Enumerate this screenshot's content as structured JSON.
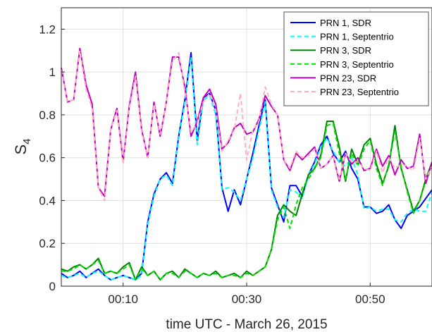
{
  "chart_data": {
    "type": "line",
    "xlabel": "time UTC - March 26, 2015",
    "ylabel": "S",
    "ylabel_sub": "4",
    "xlim": [
      0,
      60
    ],
    "ylim": [
      0,
      1.3
    ],
    "xticks": [
      10,
      30,
      50
    ],
    "xtick_labels": [
      "00:10",
      "00:30",
      "00:50"
    ],
    "yticks": [
      0,
      0.2,
      0.4,
      0.6,
      0.8,
      1,
      1.2
    ],
    "ytick_labels": [
      "0",
      "0.2",
      "0.4",
      "0.6",
      "0.8",
      "1",
      "1.2"
    ],
    "grid": true,
    "legend_position": "top-right",
    "x": [
      0,
      1,
      2,
      3,
      4,
      5,
      6,
      7,
      8,
      9,
      10,
      11,
      12,
      13,
      14,
      15,
      16,
      17,
      18,
      19,
      20,
      21,
      22,
      23,
      24,
      25,
      26,
      27,
      28,
      29,
      30,
      31,
      32,
      33,
      34,
      35,
      36,
      37,
      38,
      39,
      40,
      41,
      42,
      43,
      44,
      45,
      46,
      47,
      48,
      49,
      50,
      51,
      52,
      53,
      54,
      55,
      56,
      57,
      58,
      59,
      60
    ],
    "series": [
      {
        "name": "PRN 1, SDR",
        "color": "#0000ff",
        "dash": "solid",
        "values": [
          0.06,
          0.04,
          0.05,
          0.07,
          0.04,
          0.06,
          0.08,
          0.05,
          0.03,
          0.04,
          0.05,
          0.04,
          0.03,
          0.06,
          0.3,
          0.43,
          0.5,
          0.53,
          0.48,
          0.7,
          0.87,
          1.09,
          0.68,
          0.88,
          0.9,
          0.82,
          0.46,
          0.35,
          0.45,
          0.38,
          0.5,
          0.62,
          0.75,
          0.87,
          0.46,
          0.38,
          0.3,
          0.47,
          0.47,
          0.42,
          0.52,
          0.58,
          0.66,
          0.7,
          0.62,
          0.58,
          0.63,
          0.55,
          0.5,
          0.37,
          0.37,
          0.34,
          0.35,
          0.38,
          0.31,
          0.27,
          0.33,
          0.35,
          0.37,
          0.41,
          0.45
        ]
      },
      {
        "name": "PRN 1, Septentrio",
        "color": "#00ffff",
        "dash": "dashed",
        "values": [
          0.05,
          0.04,
          0.05,
          0.06,
          0.04,
          0.06,
          0.07,
          0.05,
          0.03,
          0.04,
          0.05,
          0.04,
          0.03,
          0.05,
          0.29,
          0.42,
          0.5,
          0.52,
          0.47,
          0.69,
          0.86,
          1.07,
          0.66,
          0.87,
          0.89,
          0.8,
          0.45,
          0.46,
          0.44,
          0.4,
          0.5,
          0.6,
          0.73,
          0.86,
          0.45,
          0.37,
          0.32,
          0.45,
          0.44,
          0.41,
          0.52,
          0.57,
          0.65,
          0.69,
          0.63,
          0.58,
          0.56,
          0.6,
          0.52,
          0.36,
          0.37,
          0.35,
          0.36,
          0.36,
          0.31,
          0.3,
          0.34,
          0.36,
          0.35,
          0.35,
          0.44
        ]
      },
      {
        "name": "PRN 3, SDR",
        "color": "#008000",
        "dash": "solid",
        "values": [
          0.08,
          0.07,
          0.09,
          0.1,
          0.08,
          0.1,
          0.13,
          0.06,
          0.07,
          0.06,
          0.09,
          0.11,
          0.03,
          0.09,
          0.05,
          0.07,
          0.03,
          0.06,
          0.07,
          0.04,
          0.08,
          0.06,
          0.04,
          0.06,
          0.05,
          0.07,
          0.04,
          0.05,
          0.06,
          0.04,
          0.07,
          0.05,
          0.07,
          0.09,
          0.17,
          0.33,
          0.38,
          0.35,
          0.33,
          0.43,
          0.52,
          0.55,
          0.61,
          0.77,
          0.77,
          0.65,
          0.49,
          0.64,
          0.57,
          0.66,
          0.69,
          0.57,
          0.48,
          0.56,
          0.75,
          0.55,
          0.45,
          0.35,
          0.4,
          0.5,
          0.58
        ]
      },
      {
        "name": "PRN 3, Septentrio",
        "color": "#00dd00",
        "dash": "dashed",
        "values": [
          0.07,
          0.07,
          0.08,
          0.1,
          0.08,
          0.1,
          0.12,
          0.06,
          0.07,
          0.06,
          0.08,
          0.1,
          0.03,
          0.08,
          0.05,
          0.07,
          0.03,
          0.06,
          0.06,
          0.04,
          0.07,
          0.06,
          0.04,
          0.06,
          0.05,
          0.06,
          0.04,
          0.05,
          0.05,
          0.04,
          0.06,
          0.05,
          0.07,
          0.09,
          0.17,
          0.31,
          0.37,
          0.27,
          0.38,
          0.46,
          0.5,
          0.55,
          0.6,
          0.75,
          0.76,
          0.62,
          0.5,
          0.62,
          0.56,
          0.64,
          0.68,
          0.55,
          0.47,
          0.57,
          0.72,
          0.56,
          0.44,
          0.34,
          0.4,
          0.49,
          0.56
        ]
      },
      {
        "name": "PRN 23, SDR",
        "color": "#c000c0",
        "dash": "solid",
        "values": [
          1.02,
          0.86,
          0.87,
          1.11,
          0.94,
          0.85,
          0.46,
          0.42,
          0.73,
          0.83,
          0.58,
          0.84,
          1.0,
          0.73,
          0.6,
          0.86,
          0.7,
          0.86,
          1.07,
          1.07,
          0.93,
          0.7,
          0.77,
          0.88,
          0.92,
          0.85,
          0.64,
          0.67,
          0.74,
          0.76,
          0.71,
          0.72,
          0.78,
          0.89,
          0.84,
          0.8,
          0.59,
          0.54,
          0.62,
          0.59,
          0.62,
          0.65,
          0.55,
          0.57,
          0.61,
          0.49,
          0.62,
          0.57,
          0.6,
          0.54,
          0.55,
          0.64,
          0.56,
          0.61,
          0.52,
          0.59,
          0.55,
          0.56,
          0.71,
          0.48,
          0.58
        ]
      },
      {
        "name": "PRN 23, Septentrio",
        "color": "#ffb0c0",
        "dash": "dashed",
        "values": [
          1.01,
          0.86,
          0.87,
          1.1,
          0.92,
          0.83,
          0.46,
          0.4,
          0.73,
          0.82,
          0.57,
          0.83,
          0.98,
          0.72,
          0.6,
          0.85,
          0.71,
          0.86,
          1.05,
          1.09,
          0.91,
          0.72,
          0.76,
          0.86,
          0.9,
          0.82,
          0.63,
          0.68,
          0.73,
          0.9,
          0.59,
          0.73,
          0.77,
          0.93,
          0.85,
          0.8,
          0.59,
          0.55,
          0.63,
          0.6,
          0.61,
          0.64,
          0.55,
          0.57,
          0.61,
          0.5,
          0.62,
          0.58,
          0.58,
          0.55,
          0.54,
          0.63,
          0.53,
          0.6,
          0.55,
          0.57,
          0.56,
          0.54,
          0.69,
          0.5,
          0.56
        ]
      }
    ]
  }
}
